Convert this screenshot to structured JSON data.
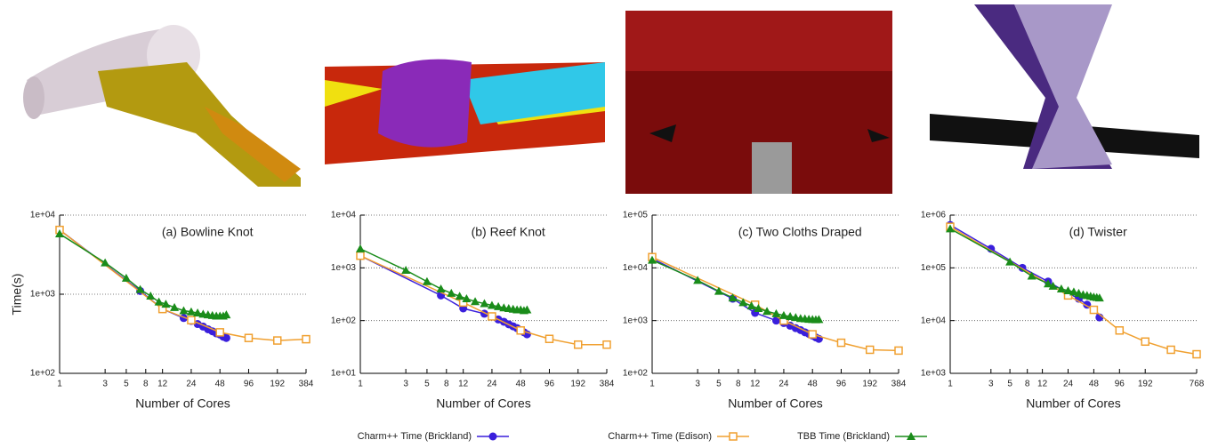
{
  "chart_data": [
    {
      "type": "line",
      "title": "(a) Bowline Knot",
      "x_label": "Number of Cores",
      "y_label": "Time(s)",
      "log_x": true,
      "log_y": true,
      "grid": true,
      "xlim": [
        1,
        384
      ],
      "xticks": [
        1,
        3,
        5,
        8,
        12,
        24,
        48,
        96,
        192,
        384
      ],
      "ylim": [
        100,
        10000
      ],
      "yticks": [
        {
          "value": 100,
          "label": "1e+02"
        },
        {
          "value": 1000,
          "label": "1e+03"
        },
        {
          "value": 10000,
          "label": "1e+04"
        }
      ],
      "series": [
        {
          "name": "Charm++ Time (Brickland)",
          "color": "#3a1fdc",
          "marker": "circle",
          "x": [
            1,
            7,
            12,
            20,
            24,
            28,
            32,
            36,
            40,
            44,
            48,
            52,
            56
          ],
          "values": [
            6500,
            1100,
            650,
            500,
            460,
            420,
            390,
            360,
            340,
            320,
            310,
            290,
            280
          ]
        },
        {
          "name": "Charm++ Time (Edison)",
          "color": "#f0a030",
          "marker": "square",
          "x": [
            1,
            12,
            24,
            48,
            96,
            192,
            384
          ],
          "values": [
            6500,
            650,
            470,
            330,
            280,
            260,
            270
          ]
        },
        {
          "name": "TBB Time (Brickland)",
          "color": "#1a8c1a",
          "marker": "triangle",
          "x": [
            1,
            3,
            5,
            7,
            9,
            11,
            13,
            16,
            20,
            24,
            28,
            32,
            36,
            40,
            44,
            48,
            52,
            56
          ],
          "values": [
            5800,
            2500,
            1600,
            1150,
            950,
            800,
            750,
            680,
            620,
            600,
            580,
            560,
            550,
            540,
            530,
            530,
            530,
            550
          ]
        }
      ]
    },
    {
      "type": "line",
      "title": "(b) Reef Knot",
      "x_label": "Number of Cores",
      "log_x": true,
      "log_y": true,
      "grid": true,
      "xlim": [
        1,
        384
      ],
      "xticks": [
        1,
        3,
        5,
        8,
        12,
        24,
        48,
        96,
        192,
        384
      ],
      "ylim": [
        10,
        10000
      ],
      "yticks": [
        {
          "value": 10,
          "label": "1e+01"
        },
        {
          "value": 100,
          "label": "1e+02"
        },
        {
          "value": 1000,
          "label": "1e+03"
        },
        {
          "value": 10000,
          "label": "1e+04"
        }
      ],
      "series": [
        {
          "name": "Charm++ Time (Brickland)",
          "color": "#3a1fdc",
          "marker": "circle",
          "x": [
            1,
            7,
            12,
            20,
            24,
            28,
            32,
            36,
            40,
            44,
            48,
            52,
            56
          ],
          "values": [
            1700,
            300,
            170,
            135,
            120,
            105,
            95,
            85,
            78,
            72,
            66,
            60,
            55
          ]
        },
        {
          "name": "Charm++ Time (Edison)",
          "color": "#f0a030",
          "marker": "square",
          "x": [
            1,
            12,
            24,
            48,
            96,
            192,
            384
          ],
          "values": [
            1700,
            220,
            120,
            65,
            45,
            35,
            35
          ]
        },
        {
          "name": "TBB Time (Brickland)",
          "color": "#1a8c1a",
          "marker": "triangle",
          "x": [
            1,
            3,
            5,
            7,
            9,
            11,
            13,
            16,
            20,
            24,
            28,
            32,
            36,
            40,
            44,
            48,
            52,
            56
          ],
          "values": [
            2300,
            900,
            550,
            400,
            330,
            290,
            260,
            230,
            210,
            195,
            185,
            175,
            170,
            165,
            160,
            160,
            155,
            160
          ]
        }
      ]
    },
    {
      "type": "line",
      "title": "(c) Two Cloths Draped",
      "x_label": "Number of Cores",
      "log_x": true,
      "log_y": true,
      "grid": true,
      "xlim": [
        1,
        384
      ],
      "xticks": [
        1,
        3,
        5,
        8,
        12,
        24,
        48,
        96,
        192,
        384
      ],
      "ylim": [
        100,
        100000
      ],
      "yticks": [
        {
          "value": 100,
          "label": "1e+02"
        },
        {
          "value": 1000,
          "label": "1e+03"
        },
        {
          "value": 10000,
          "label": "1e+04"
        },
        {
          "value": 100000,
          "label": "1e+05"
        }
      ],
      "series": [
        {
          "name": "Charm++ Time (Brickland)",
          "color": "#3a1fdc",
          "marker": "circle",
          "x": [
            1,
            7,
            12,
            20,
            24,
            28,
            32,
            36,
            40,
            44,
            48,
            52,
            56
          ],
          "values": [
            15000,
            2600,
            1400,
            1000,
            900,
            800,
            720,
            660,
            600,
            560,
            520,
            480,
            450
          ]
        },
        {
          "name": "Charm++ Time (Edison)",
          "color": "#f0a030",
          "marker": "square",
          "x": [
            1,
            12,
            24,
            48,
            96,
            192,
            384
          ],
          "values": [
            16000,
            2000,
            1000,
            550,
            380,
            280,
            270
          ]
        },
        {
          "name": "TBB Time (Brickland)",
          "color": "#1a8c1a",
          "marker": "triangle",
          "x": [
            1,
            3,
            5,
            7,
            9,
            11,
            13,
            16,
            20,
            24,
            28,
            32,
            36,
            40,
            44,
            48,
            52,
            56
          ],
          "values": [
            14000,
            5800,
            3600,
            2700,
            2200,
            1900,
            1700,
            1500,
            1350,
            1250,
            1200,
            1150,
            1100,
            1080,
            1060,
            1050,
            1040,
            1050
          ]
        }
      ]
    },
    {
      "type": "line",
      "title": "(d) Twister",
      "x_label": "Number of Cores",
      "log_x": true,
      "log_y": true,
      "grid": true,
      "xlim": [
        1,
        768
      ],
      "xticks": [
        1,
        3,
        5,
        8,
        12,
        24,
        48,
        96,
        192,
        768
      ],
      "ylim": [
        1000,
        1000000
      ],
      "yticks": [
        {
          "value": 1000,
          "label": "1e+03"
        },
        {
          "value": 10000,
          "label": "1e+04"
        },
        {
          "value": 100000,
          "label": "1e+05"
        },
        {
          "value": 1000000,
          "label": "1e+06"
        }
      ],
      "series": [
        {
          "name": "Charm++ Time (Brickland)",
          "color": "#3a1fdc",
          "marker": "circle",
          "x": [
            1,
            3,
            7,
            14,
            24,
            32,
            40,
            48,
            56
          ],
          "values": [
            650000,
            230000,
            100000,
            55000,
            33000,
            26000,
            20000,
            16000,
            11500
          ]
        },
        {
          "name": "Charm++ Time (Edison)",
          "color": "#f0a030",
          "marker": "square",
          "x": [
            1,
            24,
            48,
            96,
            192,
            384,
            768
          ],
          "values": [
            600000,
            30000,
            16000,
            6500,
            4000,
            2800,
            2300
          ]
        },
        {
          "name": "TBB Time (Brickland)",
          "color": "#1a8c1a",
          "marker": "triangle",
          "x": [
            1,
            5,
            9,
            14,
            16,
            20,
            24,
            28,
            32,
            36,
            40,
            44,
            48,
            52,
            56
          ],
          "values": [
            550000,
            130000,
            70000,
            50000,
            45000,
            40000,
            37000,
            35000,
            33000,
            31000,
            30000,
            29000,
            28000,
            27500,
            27000
          ]
        }
      ]
    }
  ]
}
